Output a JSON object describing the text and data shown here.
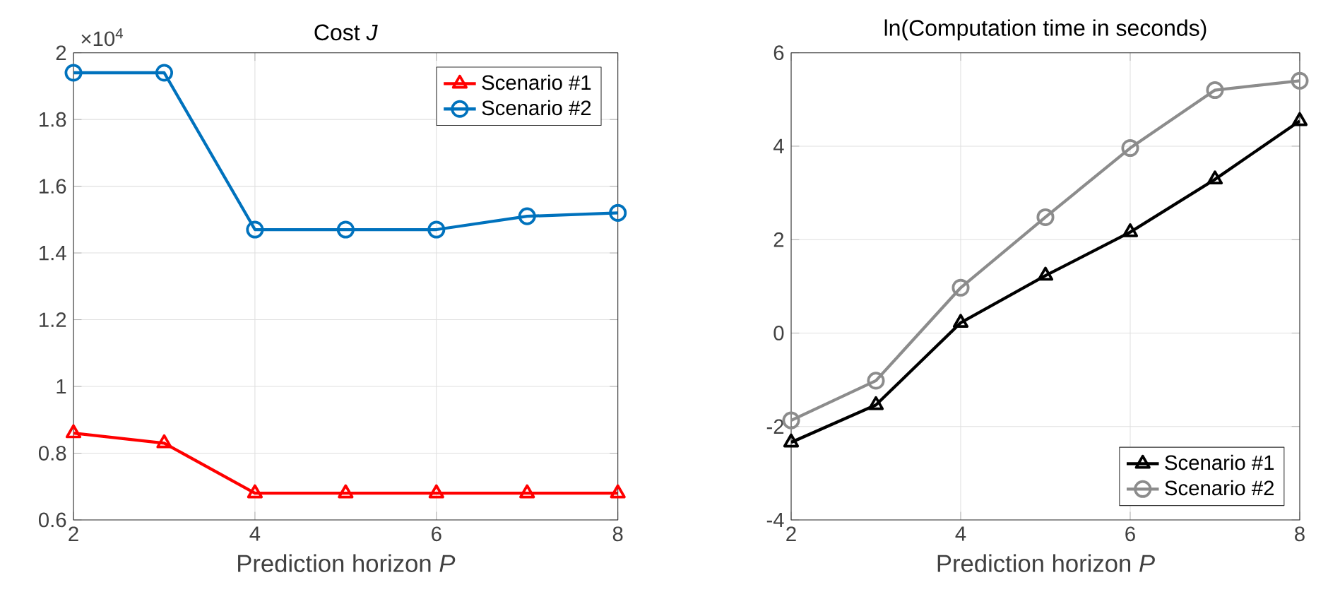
{
  "chart_data": [
    {
      "type": "line",
      "title": "Cost  *J*",
      "xlabel": "Prediction horizon  *P*",
      "annotations": [
        "×10$^{4}$"
      ],
      "x": [
        2,
        3,
        4,
        5,
        6,
        7,
        8
      ],
      "series": [
        {
          "name": "Scenario #1",
          "color": "#ff0000",
          "marker": "triangle",
          "values": [
            0.86,
            0.83,
            0.68,
            0.68,
            0.68,
            0.68,
            0.68
          ]
        },
        {
          "name": "Scenario #2",
          "color": "#0072bd",
          "marker": "circle",
          "values": [
            1.94,
            1.94,
            1.47,
            1.47,
            1.47,
            1.51,
            1.52
          ]
        }
      ],
      "xlim": [
        2,
        8
      ],
      "xticks": [
        2,
        4,
        6,
        8
      ],
      "ylim": [
        0.6,
        2
      ],
      "yticks": [
        0.6,
        0.8,
        1,
        1.2,
        1.4,
        1.6,
        1.8,
        2
      ],
      "grid": true,
      "legend": "top right",
      "line_style": "solid"
    },
    {
      "type": "line",
      "title": "ln(Computation time in seconds)",
      "xlabel": "Prediction horizon  *P*",
      "x": [
        2,
        3,
        4,
        5,
        6,
        7,
        8
      ],
      "series": [
        {
          "name": "Scenario #1",
          "color": "#000000",
          "marker": "triangle",
          "values": [
            -2.34,
            -1.54,
            0.22,
            1.23,
            2.16,
            3.29,
            4.54
          ]
        },
        {
          "name": "Scenario #2",
          "color": "#8c8c8c",
          "marker": "circle",
          "values": [
            -1.87,
            -1.02,
            0.97,
            2.48,
            3.96,
            5.2,
            5.4
          ]
        }
      ],
      "xlim": [
        2,
        8
      ],
      "xticks": [
        2,
        4,
        6,
        8
      ],
      "ylim": [
        -4,
        6
      ],
      "yticks": [
        -4,
        -2,
        0,
        2,
        4,
        6
      ],
      "grid": true,
      "legend": "bottom right",
      "line_style": "solid"
    }
  ]
}
